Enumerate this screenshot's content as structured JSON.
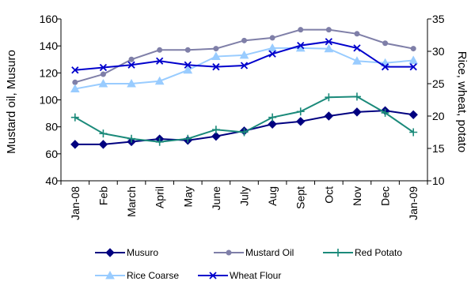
{
  "chart_data": {
    "type": "line",
    "title": "",
    "categories": [
      "Jan-08",
      "Feb",
      "March",
      "April",
      "May",
      "June",
      "July",
      "Aug",
      "Sept",
      "Oct",
      "Nov",
      "Dec",
      "Jan-09"
    ],
    "left_axis": {
      "label": "Mustard oil, Musuro",
      "ylim": [
        40,
        160
      ],
      "ticks": [
        40,
        60,
        80,
        100,
        120,
        140,
        160
      ]
    },
    "right_axis": {
      "label": "Rice, wheat, potato",
      "ylim": [
        10,
        35
      ],
      "ticks": [
        10,
        15,
        20,
        25,
        30,
        35
      ]
    },
    "series": [
      {
        "name": "Musuro",
        "axis": "left",
        "color": "#000080",
        "marker": "diamond",
        "values": [
          67,
          67,
          69,
          71,
          70,
          73,
          77,
          82,
          84,
          88,
          91,
          92,
          89
        ]
      },
      {
        "name": "Mustard Oil",
        "axis": "left",
        "color": "#7F7FA8",
        "marker": "circle",
        "values": [
          113,
          119,
          130,
          137,
          137,
          138,
          144,
          146,
          152,
          152,
          149,
          142,
          138
        ]
      },
      {
        "name": "Red Potato",
        "axis": "right",
        "color": "#1B8A7A",
        "marker": "plus",
        "values": [
          19.8,
          17.3,
          16.5,
          16.0,
          16.5,
          17.9,
          17.5,
          19.8,
          20.7,
          22.9,
          23.0,
          20.5,
          17.5
        ]
      },
      {
        "name": "Rice Coarse",
        "axis": "right",
        "color": "#99CCFF",
        "marker": "triangle",
        "values": [
          24.2,
          25.0,
          25.0,
          25.4,
          27.1,
          29.2,
          29.4,
          30.5,
          30.5,
          30.4,
          28.5,
          28.2,
          28.6
        ]
      },
      {
        "name": "Wheat Flour",
        "axis": "right",
        "color": "#0000CC",
        "marker": "x",
        "values": [
          27.1,
          27.5,
          27.9,
          28.5,
          27.9,
          27.6,
          27.8,
          29.6,
          30.9,
          31.5,
          30.5,
          27.6,
          27.6
        ]
      }
    ],
    "grid": false,
    "legend": "bottom"
  }
}
